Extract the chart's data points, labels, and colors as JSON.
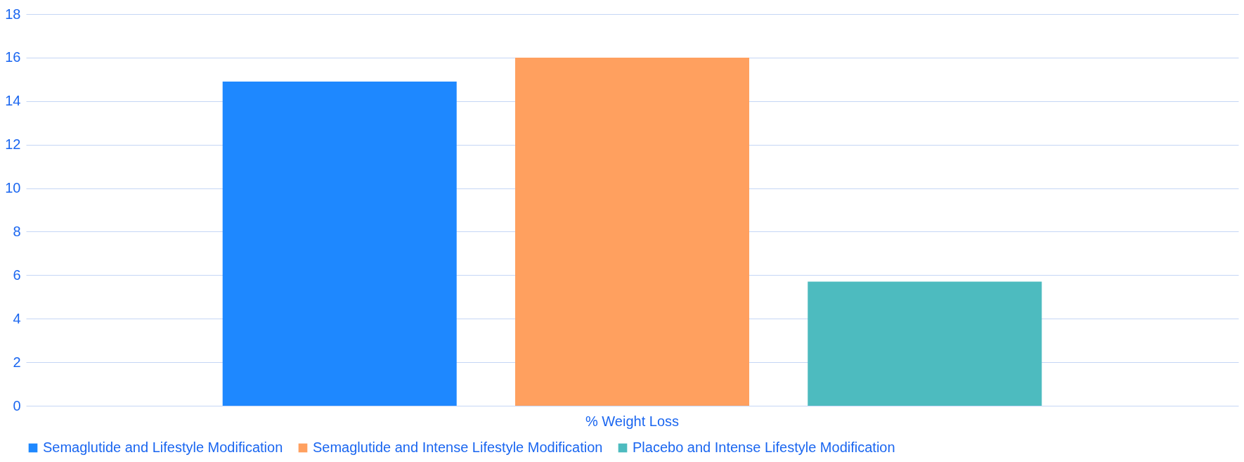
{
  "chart_data": {
    "type": "bar",
    "categories": [
      "% Weight Loss"
    ],
    "series": [
      {
        "name": "Semaglutide and Lifestyle Modification",
        "color": "#1e88ff",
        "values": [
          14.9
        ]
      },
      {
        "name": "Semaglutide and Intense Lifestyle Modification",
        "color": "#ffa05f",
        "values": [
          16.0
        ]
      },
      {
        "name": "Placebo and Intense Lifestyle Modification",
        "color": "#4dbbbf",
        "values": [
          5.7
        ]
      }
    ],
    "ylim": [
      0,
      18
    ],
    "yticks": [
      0,
      2,
      4,
      6,
      8,
      10,
      12,
      14,
      16,
      18
    ],
    "grid": "y",
    "legend": "bottom"
  }
}
